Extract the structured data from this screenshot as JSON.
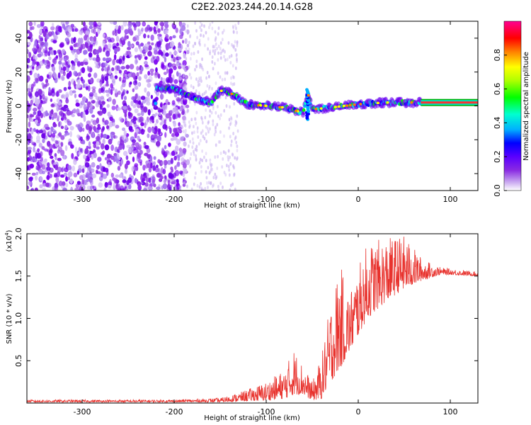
{
  "title": "C2E2.2023.244.20.14.G28",
  "chart_data": [
    {
      "type": "heatmap",
      "xlabel": "Height of straight line (km)",
      "ylabel": "Frequency (Hz)",
      "xlim": [
        -360,
        130
      ],
      "ylim": [
        -50,
        50
      ],
      "xticks": [
        -300,
        -200,
        -100,
        0,
        100
      ],
      "yticks": [
        -40,
        -20,
        0,
        20,
        40
      ],
      "colorbar": {
        "label": "Normalized spectral amplitude",
        "range": [
          0,
          1
        ],
        "ticks": [
          0.0,
          0.2,
          0.4,
          0.6,
          0.8
        ],
        "colors": [
          "#ffffff",
          "#c9a8f0",
          "#8a2be2",
          "#5a00ff",
          "#0000ff",
          "#00b0ff",
          "#00ffd0",
          "#00ff00",
          "#b0ff00",
          "#ffff00",
          "#ff8000",
          "#ff0000",
          "#ff0090"
        ]
      },
      "track": [
        {
          "x": -220,
          "y": 11
        },
        {
          "x": -200,
          "y": 10
        },
        {
          "x": -180,
          "y": 5
        },
        {
          "x": -160,
          "y": 2
        },
        {
          "x": -150,
          "y": 9
        },
        {
          "x": -140,
          "y": 8
        },
        {
          "x": -120,
          "y": 1
        },
        {
          "x": -100,
          "y": 0
        },
        {
          "x": -80,
          "y": -1
        },
        {
          "x": -60,
          "y": -4
        },
        {
          "x": -55,
          "y": 8
        },
        {
          "x": -50,
          "y": -2
        },
        {
          "x": -30,
          "y": -1
        },
        {
          "x": 0,
          "y": 1
        },
        {
          "x": 30,
          "y": 2
        },
        {
          "x": 68,
          "y": 2
        },
        {
          "x": 130,
          "y": 2
        }
      ]
    },
    {
      "type": "line",
      "xlabel": "Height of straight line (km)",
      "ylabel": "SNR (10 * v/v)",
      "multiplier_label": "(x10",
      "multiplier_exp": "4",
      "multiplier_close": ")",
      "xlim": [
        -360,
        130
      ],
      "ylim": [
        0,
        2.0
      ],
      "xticks": [
        -300,
        -200,
        -100,
        0,
        100
      ],
      "yticks": [
        "0.5",
        "1.0",
        "1.5",
        "2.0"
      ],
      "color": "#e8322d",
      "envelope": [
        {
          "x": -360,
          "lo": 0.01,
          "hi": 0.04
        },
        {
          "x": -200,
          "lo": 0.01,
          "hi": 0.04
        },
        {
          "x": -150,
          "lo": 0.01,
          "hi": 0.06
        },
        {
          "x": -130,
          "lo": 0.02,
          "hi": 0.12
        },
        {
          "x": -100,
          "lo": 0.03,
          "hi": 0.25
        },
        {
          "x": -80,
          "lo": 0.05,
          "hi": 0.4
        },
        {
          "x": -70,
          "lo": 0.1,
          "hi": 0.65
        },
        {
          "x": -60,
          "lo": 0.1,
          "hi": 0.45
        },
        {
          "x": -50,
          "lo": 0.03,
          "hi": 0.25
        },
        {
          "x": -40,
          "lo": 0.05,
          "hi": 0.55
        },
        {
          "x": -30,
          "lo": 0.25,
          "hi": 1.2
        },
        {
          "x": -20,
          "lo": 0.4,
          "hi": 1.65
        },
        {
          "x": -10,
          "lo": 0.6,
          "hi": 1.3
        },
        {
          "x": 0,
          "lo": 0.8,
          "hi": 1.6
        },
        {
          "x": 10,
          "lo": 1.0,
          "hi": 1.9
        },
        {
          "x": 30,
          "lo": 1.2,
          "hi": 1.95
        },
        {
          "x": 50,
          "lo": 1.35,
          "hi": 1.98
        },
        {
          "x": 70,
          "lo": 1.45,
          "hi": 1.7
        },
        {
          "x": 90,
          "lo": 1.52,
          "hi": 1.6
        },
        {
          "x": 130,
          "lo": 1.5,
          "hi": 1.55
        }
      ]
    }
  ]
}
